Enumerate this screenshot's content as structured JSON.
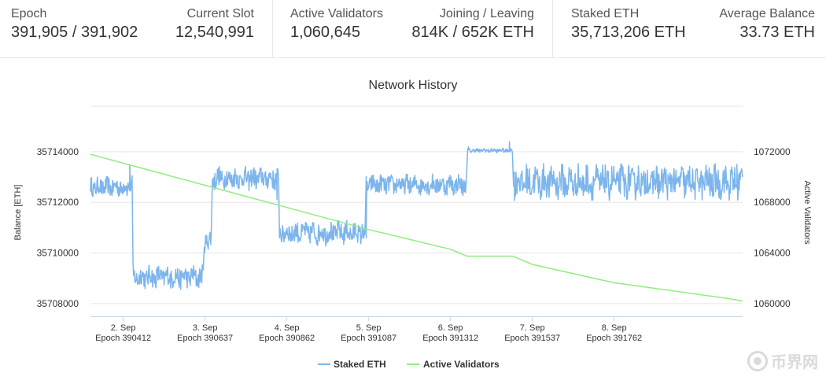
{
  "stats": [
    {
      "label": "Epoch",
      "value": "391,905 / 391,902"
    },
    {
      "label": "Current Slot",
      "value": "12,540,991"
    },
    {
      "label": "Active Validators",
      "value": "1,060,645"
    },
    {
      "label": "Joining / Leaving",
      "value": "814K / 652K ETH"
    },
    {
      "label": "Staked ETH",
      "value": "35,713,206 ETH"
    },
    {
      "label": "Average Balance",
      "value": "33.73 ETH"
    }
  ],
  "chart_data": {
    "type": "line",
    "title": "Network History",
    "ylabel_left": "Balance [ETH]",
    "ylabel_right": "Active Validators",
    "ylim_left": [
      35707500,
      35715800
    ],
    "yticks_left": [
      35708000,
      35710000,
      35712000,
      35714000
    ],
    "ylim_right": [
      1059000,
      1075600
    ],
    "yticks_right": [
      1060000,
      1064000,
      1068000,
      1072000
    ],
    "xlim": [
      1.6,
      9.57
    ],
    "grid": true,
    "legend_position": "bottom-center",
    "x_ticks": [
      {
        "x": 2.0,
        "day": "2. Sep",
        "epoch": "Epoch 390412"
      },
      {
        "x": 3.0,
        "day": "3. Sep",
        "epoch": "Epoch 390637"
      },
      {
        "x": 4.0,
        "day": "4. Sep",
        "epoch": "Epoch 390862"
      },
      {
        "x": 5.0,
        "day": "5. Sep",
        "epoch": "Epoch 391087"
      },
      {
        "x": 6.0,
        "day": "6. Sep",
        "epoch": "Epoch 391312"
      },
      {
        "x": 7.0,
        "day": "7. Sep",
        "epoch": "Epoch 391537"
      },
      {
        "x": 8.0,
        "day": "8. Sep",
        "epoch": "Epoch 391762"
      }
    ],
    "series": [
      {
        "name": "Staked ETH",
        "axis": "left",
        "color": "#7cb5ec",
        "segments": [
          {
            "from": 1.6,
            "to": 2.05,
            "level": 35712600,
            "noise": 350
          },
          {
            "from": 2.06,
            "to": 2.11,
            "level": 35712700,
            "noise": 350
          },
          {
            "from": 2.12,
            "to": 2.98,
            "level": 35709050,
            "noise": 400
          },
          {
            "from": 2.99,
            "to": 3.08,
            "level": 35710500,
            "noise": 400
          },
          {
            "from": 3.09,
            "to": 3.9,
            "level": 35712950,
            "noise": 400
          },
          {
            "from": 3.91,
            "to": 4.96,
            "level": 35710800,
            "noise": 400
          },
          {
            "from": 4.97,
            "to": 6.2,
            "level": 35712700,
            "noise": 350
          },
          {
            "from": 6.21,
            "to": 6.76,
            "level": 35714050,
            "noise": 80
          },
          {
            "from": 6.77,
            "to": 9.57,
            "level": 35712800,
            "noise": 600
          }
        ],
        "points": [
          {
            "x": 2.0,
            "y": 35712600
          },
          {
            "x": 2.08,
            "y": 35713500
          },
          {
            "x": 2.13,
            "y": 35709100
          },
          {
            "x": 2.95,
            "y": 35709000
          },
          {
            "x": 3.05,
            "y": 35710500
          },
          {
            "x": 3.12,
            "y": 35712600
          },
          {
            "x": 3.6,
            "y": 35713300
          },
          {
            "x": 3.88,
            "y": 35712100
          },
          {
            "x": 3.95,
            "y": 35710800
          },
          {
            "x": 4.7,
            "y": 35711000
          },
          {
            "x": 4.97,
            "y": 35710600
          },
          {
            "x": 5.05,
            "y": 35712700
          },
          {
            "x": 6.18,
            "y": 35712800
          },
          {
            "x": 6.22,
            "y": 35714200
          },
          {
            "x": 6.68,
            "y": 35714050
          },
          {
            "x": 6.72,
            "y": 35714400
          },
          {
            "x": 6.78,
            "y": 35713200
          },
          {
            "x": 9.45,
            "y": 35712500
          },
          {
            "x": 9.5,
            "y": 35713500
          },
          {
            "x": 9.57,
            "y": 35713000
          }
        ]
      },
      {
        "name": "Active Validators",
        "axis": "right",
        "color": "#90ed7d",
        "points": [
          {
            "x": 1.6,
            "y": 1071800
          },
          {
            "x": 2.0,
            "y": 1071100
          },
          {
            "x": 3.0,
            "y": 1069350
          },
          {
            "x": 4.0,
            "y": 1067600
          },
          {
            "x": 5.0,
            "y": 1065850
          },
          {
            "x": 6.0,
            "y": 1064300
          },
          {
            "x": 6.2,
            "y": 1063750
          },
          {
            "x": 6.76,
            "y": 1063750
          },
          {
            "x": 7.0,
            "y": 1063100
          },
          {
            "x": 8.0,
            "y": 1061650
          },
          {
            "x": 9.4,
            "y": 1060400
          },
          {
            "x": 9.57,
            "y": 1060200
          }
        ]
      }
    ]
  },
  "watermark": "币界网"
}
